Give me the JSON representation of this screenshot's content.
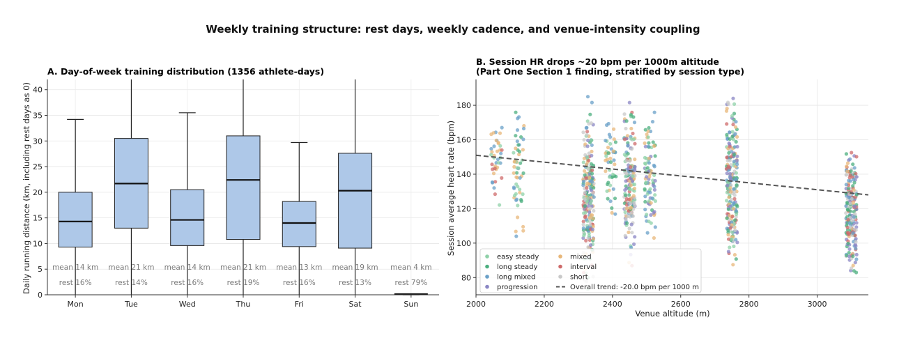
{
  "suptitle": "Weekly training structure: rest days, weekly cadence, and venue-intensity coupling",
  "chart_data": [
    {
      "type": "box",
      "title": "A. Day-of-week training distribution (1356 athlete-days)",
      "xlabel": "",
      "ylabel": "Daily running distance (km, including rest days as 0)",
      "ylim": [
        0,
        42
      ],
      "yticks": [
        0,
        5,
        10,
        15,
        20,
        25,
        30,
        35,
        40
      ],
      "grid": true,
      "fill_color": "#aec8e8",
      "categories": [
        "Mon",
        "Tue",
        "Wed",
        "Thu",
        "Fri",
        "Sat",
        "Sun"
      ],
      "boxes": [
        {
          "whislo": 0,
          "q1": 9.3,
          "med": 14.3,
          "q3": 20.0,
          "whishi": 34.2
        },
        {
          "whislo": 0,
          "q1": 13.0,
          "med": 21.7,
          "q3": 30.5,
          "whishi": 42
        },
        {
          "whislo": 0,
          "q1": 9.6,
          "med": 14.6,
          "q3": 20.5,
          "whishi": 35.5
        },
        {
          "whislo": 0,
          "q1": 10.8,
          "med": 22.4,
          "q3": 31.0,
          "whishi": 42
        },
        {
          "whislo": 0,
          "q1": 9.4,
          "med": 14.0,
          "q3": 18.2,
          "whishi": 29.7
        },
        {
          "whislo": 0,
          "q1": 9.1,
          "med": 20.3,
          "q3": 27.6,
          "whishi": 42
        },
        {
          "whislo": 0,
          "q1": 0,
          "med": 0,
          "q3": 0,
          "whishi": 0
        }
      ],
      "mean_labels": [
        "mean 14 km",
        "mean 21 km",
        "mean 14 km",
        "mean 21 km",
        "mean 13 km",
        "mean 19 km",
        "mean 4 km"
      ],
      "rest_labels": [
        "rest 16%",
        "rest 14%",
        "rest 16%",
        "rest 19%",
        "rest 16%",
        "rest 13%",
        "rest 79%"
      ]
    },
    {
      "type": "scatter",
      "title": "B. Session HR drops ~20 bpm per 1000m altitude",
      "subtitle": "(Part One Section 1 finding, stratified by session type)",
      "xlabel": "Venue altitude (m)",
      "ylabel": "Session average heart rate (bpm)",
      "xlim": [
        2000,
        3150
      ],
      "ylim": [
        70,
        195
      ],
      "xticks": [
        2000,
        2200,
        2400,
        2600,
        2800,
        3000
      ],
      "yticks": [
        80,
        100,
        120,
        140,
        160,
        180
      ],
      "grid": true,
      "legend_position": "lower-left",
      "series": [
        {
          "name": "easy steady",
          "color": "#8fd1a8"
        },
        {
          "name": "long steady",
          "color": "#4caf7f"
        },
        {
          "name": "long mixed",
          "color": "#6aa0c8"
        },
        {
          "name": "progression",
          "color": "#8a86c4"
        },
        {
          "name": "mixed",
          "color": "#e8b77a"
        },
        {
          "name": "interval",
          "color": "#cf6b6b"
        },
        {
          "name": "short",
          "color": "#c9c9c9"
        }
      ],
      "clusters": [
        {
          "x": 2060,
          "y_range": [
            118,
            178
          ],
          "count": 40,
          "mix": [
            0,
            2,
            4,
            5
          ]
        },
        {
          "x": 2125,
          "y_range": [
            98,
            183
          ],
          "count": 55,
          "mix": [
            1,
            2,
            0,
            4
          ]
        },
        {
          "x": 2330,
          "y_range": [
            70,
            185
          ],
          "count": 230,
          "mix": [
            0,
            1,
            2,
            3,
            4,
            5,
            6
          ]
        },
        {
          "x": 2395,
          "y_range": [
            110,
            180
          ],
          "count": 50,
          "mix": [
            0,
            1,
            2,
            4
          ]
        },
        {
          "x": 2450,
          "y_range": [
            85,
            182
          ],
          "count": 180,
          "mix": [
            0,
            1,
            2,
            3,
            4,
            5,
            6
          ]
        },
        {
          "x": 2510,
          "y_range": [
            95,
            185
          ],
          "count": 90,
          "mix": [
            1,
            2,
            3,
            4,
            0
          ]
        },
        {
          "x": 2750,
          "y_range": [
            86,
            184
          ],
          "count": 230,
          "mix": [
            0,
            1,
            2,
            3,
            4,
            5,
            6
          ]
        },
        {
          "x": 3100,
          "y_range": [
            72,
            167
          ],
          "count": 200,
          "mix": [
            5,
            3,
            4,
            2,
            6,
            1
          ]
        }
      ],
      "trend": {
        "label": "Overall trend: -20.0 bpm per 1000 m",
        "x": [
          2000,
          3150
        ],
        "y": [
          151,
          128
        ]
      }
    }
  ]
}
